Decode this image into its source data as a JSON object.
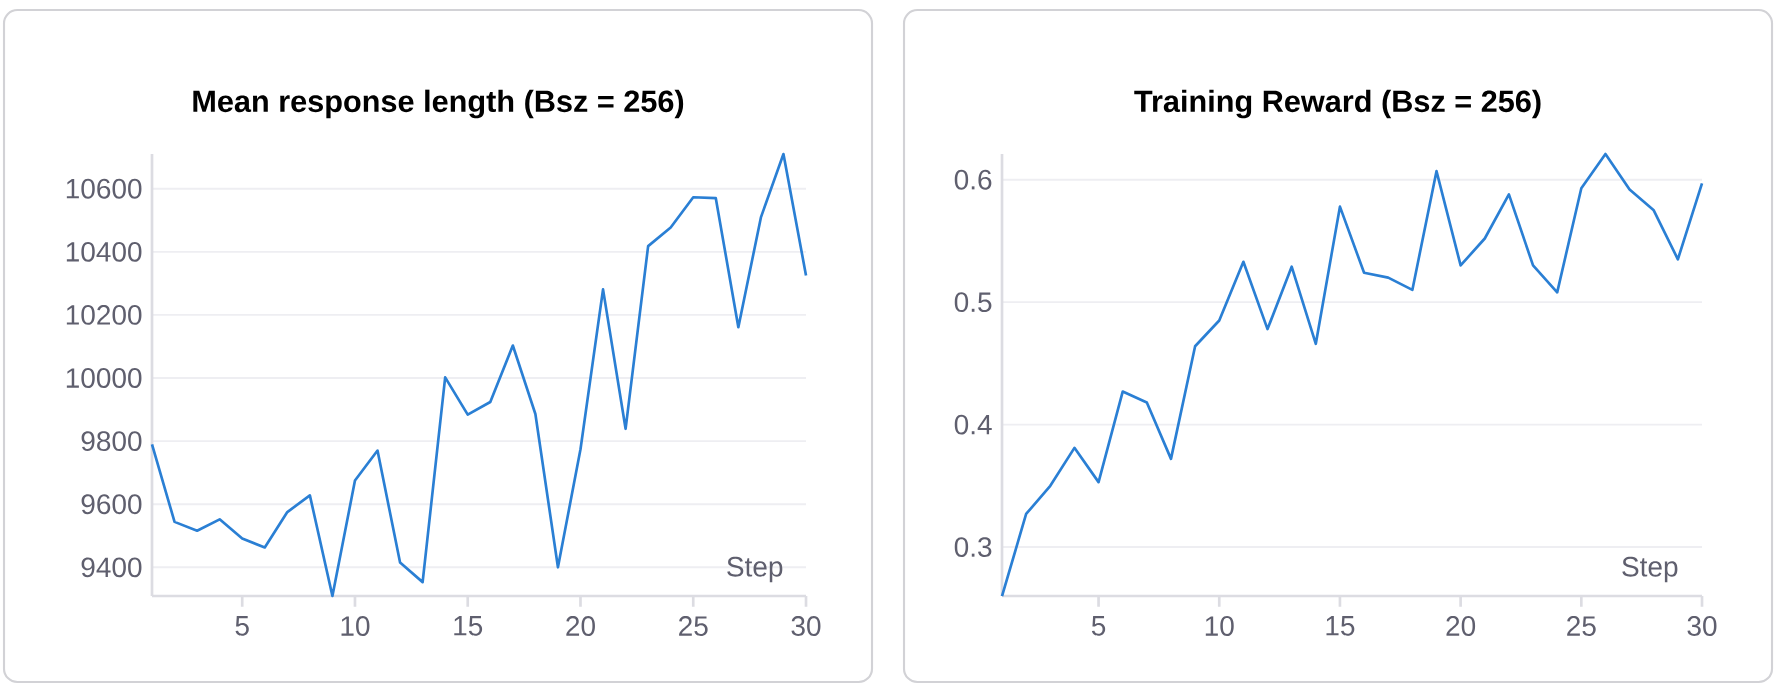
{
  "chart_data": [
    {
      "type": "line",
      "title": "Mean response length (Bsz = 256)",
      "xlabel": "Step",
      "x": [
        1,
        2,
        3,
        4,
        5,
        6,
        7,
        8,
        9,
        10,
        11,
        12,
        13,
        14,
        15,
        16,
        17,
        18,
        19,
        20,
        21,
        22,
        23,
        24,
        25,
        26,
        27,
        28,
        29,
        30
      ],
      "series": [
        {
          "color": "#2a7fd4",
          "values": [
            9790,
            9544,
            9516,
            9552,
            9491,
            9463,
            9575,
            9628,
            9309,
            9675,
            9770,
            9415,
            9353,
            10002,
            9884,
            9924,
            10103,
            9886,
            9400,
            9774,
            10281,
            9839,
            10418,
            10477,
            10573,
            10570,
            10161,
            10509,
            10710,
            10325
          ]
        }
      ],
      "xlim": [
        1,
        30
      ],
      "xticks": [
        5,
        10,
        15,
        20,
        25,
        30
      ],
      "ylim": [
        9309,
        10710
      ],
      "yticks": [
        9400,
        9600,
        9800,
        10000,
        10200,
        10400,
        10600
      ],
      "grid": "y"
    },
    {
      "type": "line",
      "title": "Training Reward (Bsz = 256)",
      "xlabel": "Step",
      "x": [
        1,
        2,
        3,
        4,
        5,
        6,
        7,
        8,
        9,
        10,
        11,
        12,
        13,
        14,
        15,
        16,
        17,
        18,
        19,
        20,
        21,
        22,
        23,
        24,
        25,
        26,
        27,
        28,
        29,
        30
      ],
      "series": [
        {
          "color": "#2a7fd4",
          "values": [
            0.26,
            0.327,
            0.35,
            0.381,
            0.353,
            0.427,
            0.418,
            0.372,
            0.464,
            0.485,
            0.533,
            0.478,
            0.529,
            0.466,
            0.578,
            0.524,
            0.52,
            0.51,
            0.607,
            0.53,
            0.552,
            0.588,
            0.53,
            0.508,
            0.593,
            0.621,
            0.592,
            0.575,
            0.535,
            0.597
          ]
        }
      ],
      "xlim": [
        1,
        30
      ],
      "xticks": [
        5,
        10,
        15,
        20,
        25,
        30
      ],
      "ylim": [
        0.26,
        0.621
      ],
      "yticks": [
        0.3,
        0.4,
        0.5,
        0.6
      ],
      "grid": "y"
    }
  ]
}
